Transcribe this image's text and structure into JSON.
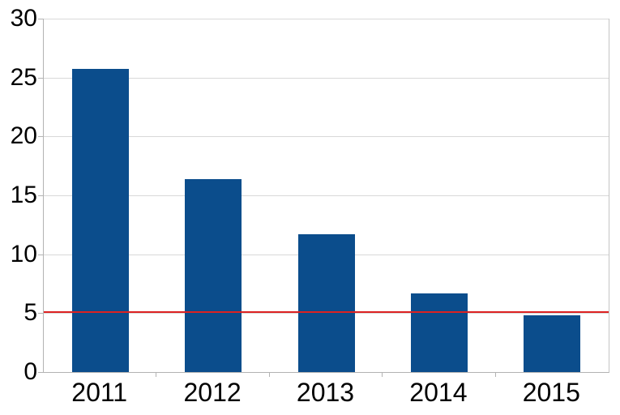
{
  "chart_data": {
    "type": "bar",
    "title": "",
    "categories": [
      "2011",
      "2012",
      "2013",
      "2014",
      "2015"
    ],
    "values": [
      25.7,
      16.4,
      11.7,
      6.7,
      4.8
    ],
    "series": [
      {
        "name": "",
        "values": [
          25.7,
          16.4,
          11.7,
          6.7,
          4.8
        ]
      }
    ],
    "reference_line": {
      "value": 5.1,
      "color": "#dd2222"
    },
    "xlabel": "",
    "ylabel": "",
    "y_axis": {
      "min": 0,
      "max": 30,
      "tick_interval": 5,
      "tick_labels": [
        "0",
        "5",
        "10",
        "15",
        "20",
        "25",
        "30"
      ]
    },
    "x_axis": {
      "tick_labels": [
        "2011",
        "2012",
        "2013",
        "2014",
        "2015"
      ]
    },
    "grid": "horizontal",
    "legend_position": "none",
    "colors": {
      "bar_fill": "#0b4d8c",
      "gridline": "#d9d9d9",
      "axis": "#b3b3b3",
      "background": "#ffffff",
      "text": "#000000"
    }
  }
}
